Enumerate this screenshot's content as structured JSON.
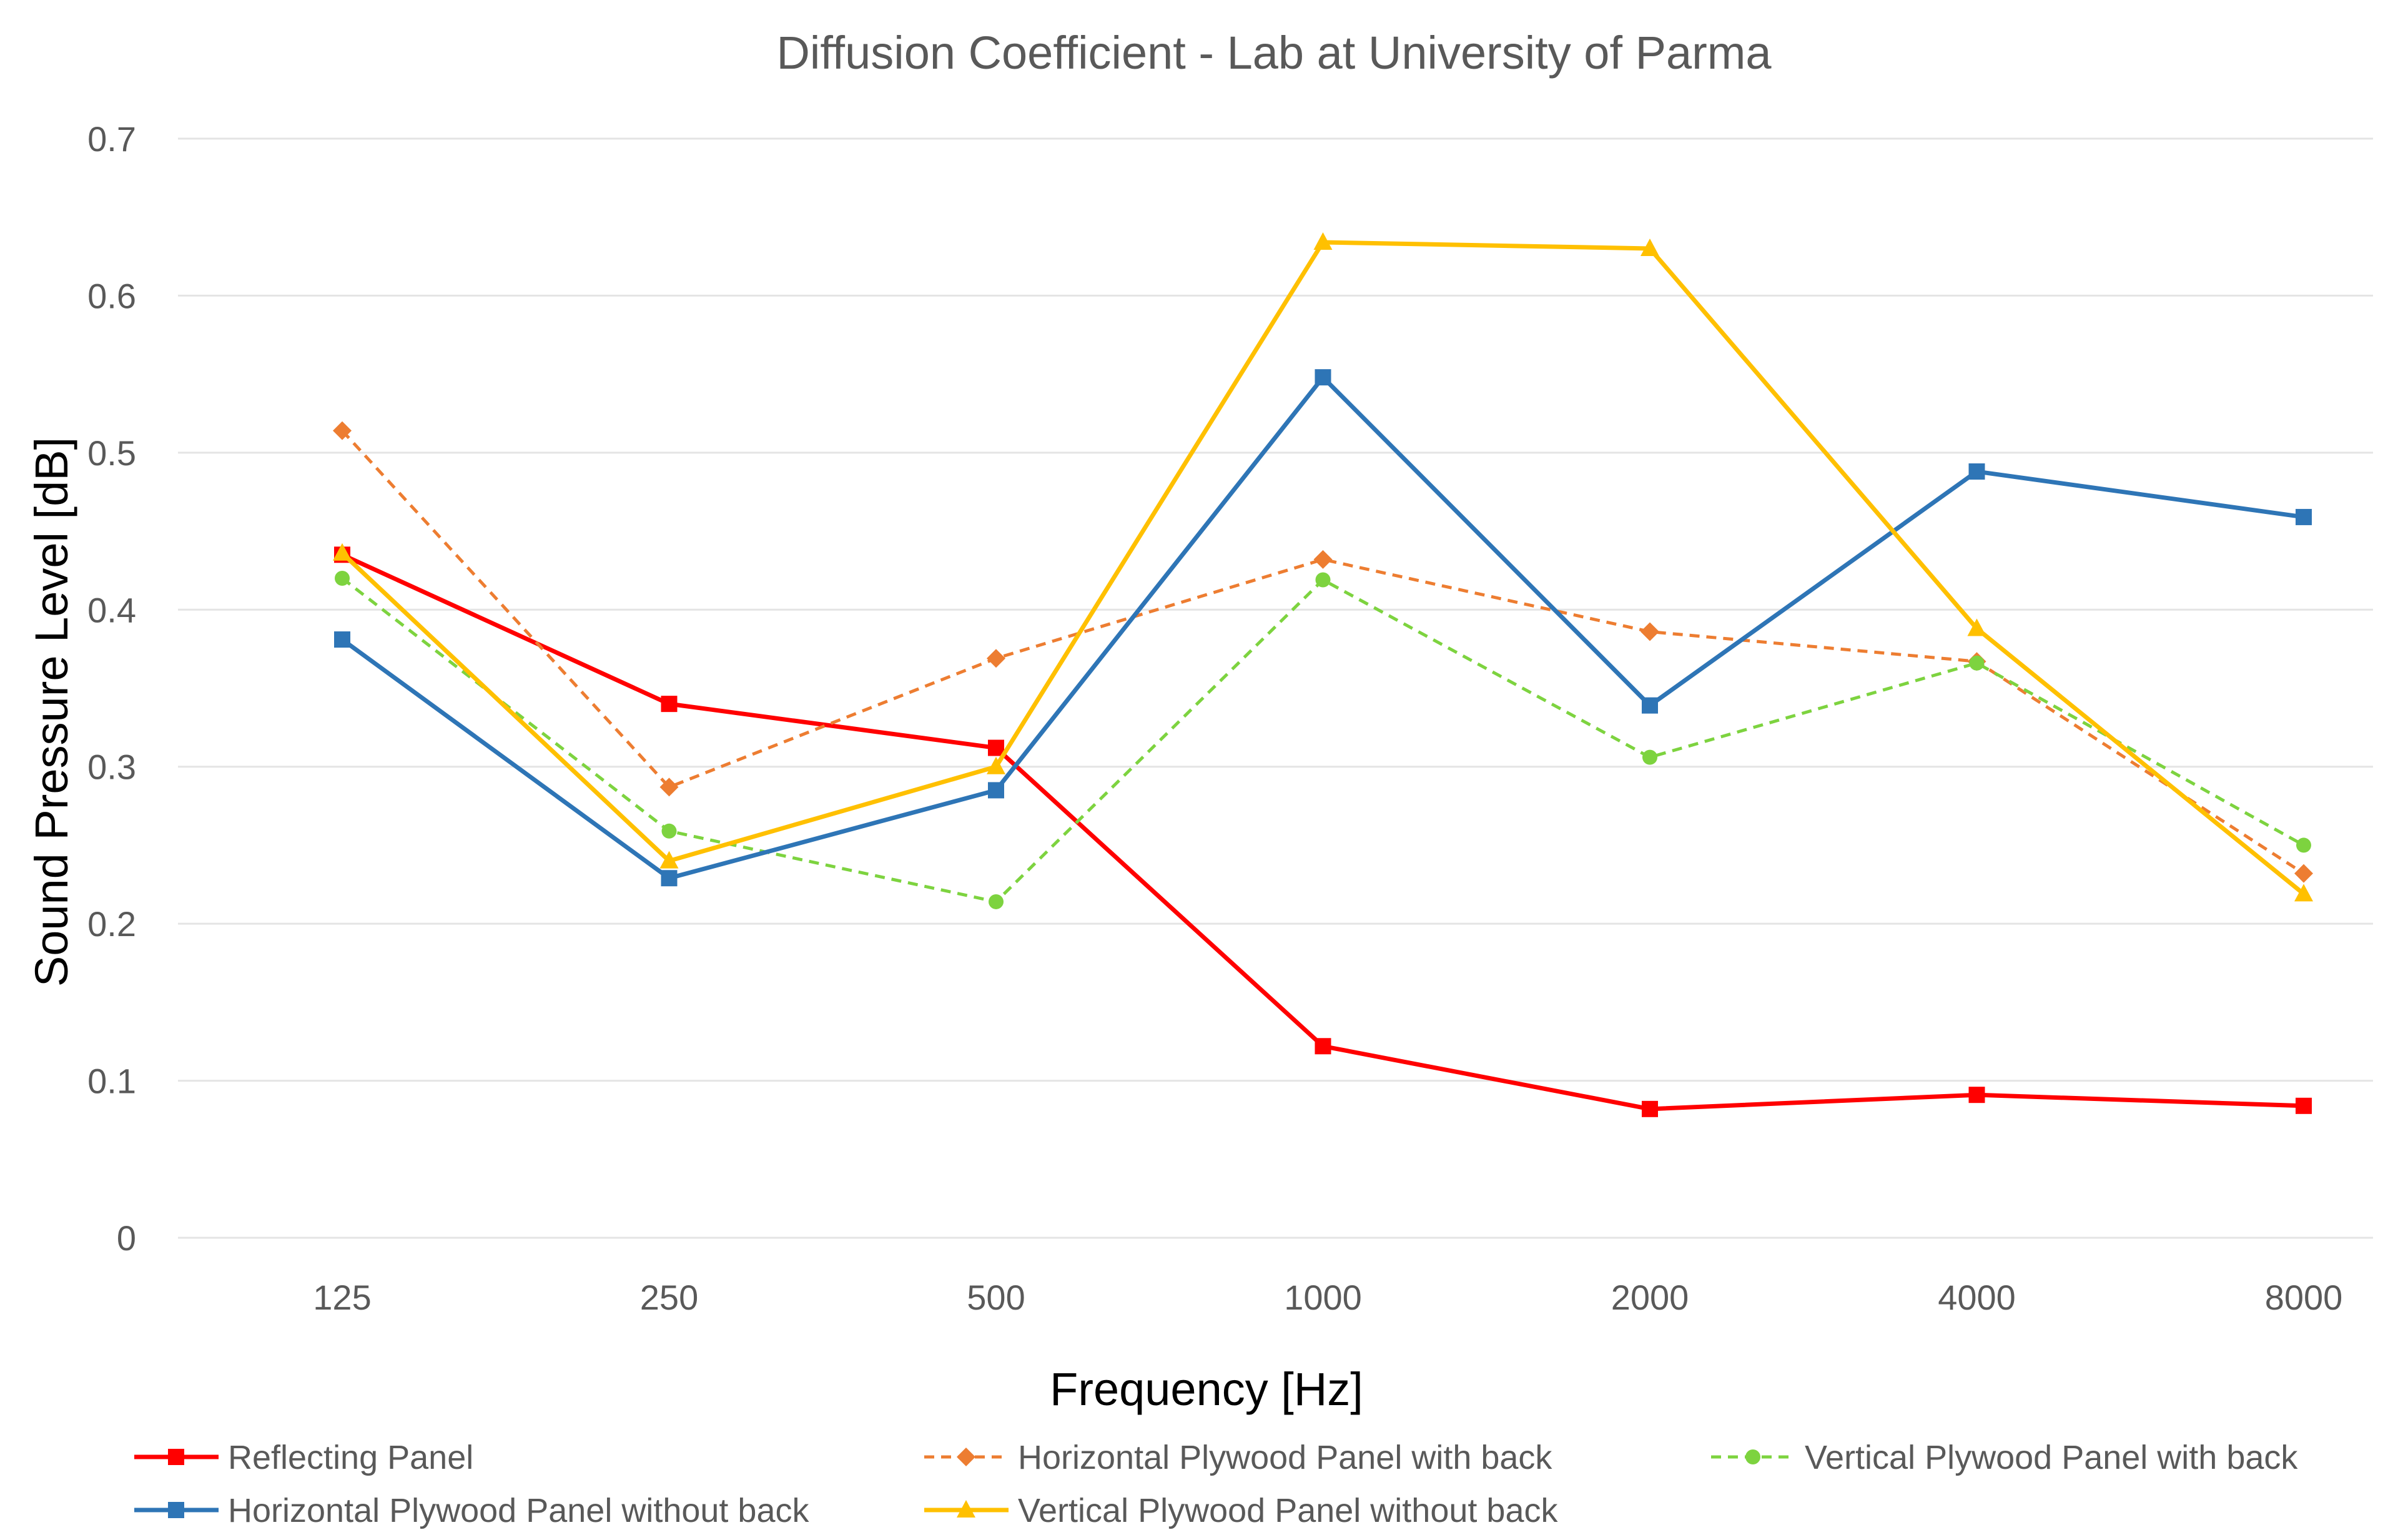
{
  "chart_data": {
    "type": "line",
    "title": "Diffusion Coefficient - Lab at University of Parma",
    "xlabel": "Frequency [Hz]",
    "ylabel": "Sound Pressure Level [dB]",
    "categories": [
      "125",
      "250",
      "500",
      "1000",
      "2000",
      "4000",
      "8000"
    ],
    "ylim": [
      0,
      0.7
    ],
    "yticks": [
      "0",
      "0.1",
      "0.2",
      "0.3",
      "0.4",
      "0.5",
      "0.6",
      "0.7"
    ],
    "grid": true,
    "legend_position": "bottom",
    "series": [
      {
        "name": "Reflecting Panel",
        "color": "#ff0000",
        "dashed": false,
        "marker": "square",
        "values": [
          0.435,
          0.34,
          0.312,
          0.122,
          0.082,
          0.091,
          0.084
        ]
      },
      {
        "name": "Horizontal Plywood Panel with back",
        "color": "#ed7d31",
        "dashed": true,
        "marker": "diamond",
        "values": [
          0.514,
          0.287,
          0.369,
          0.432,
          0.386,
          0.367,
          0.232
        ]
      },
      {
        "name": "Vertical Plywood Panel with back",
        "color": "#7dd33f",
        "dashed": true,
        "marker": "circle",
        "values": [
          0.42,
          0.259,
          0.214,
          0.419,
          0.306,
          0.366,
          0.25
        ]
      },
      {
        "name": "Horizontal Plywood Panel without back",
        "color": "#2e75b6",
        "dashed": false,
        "marker": "square",
        "values": [
          0.381,
          0.229,
          0.285,
          0.548,
          0.339,
          0.488,
          0.459
        ]
      },
      {
        "name": "Vertical Plywood Panel without back",
        "color": "#ffc000",
        "dashed": false,
        "marker": "triangle",
        "values": [
          0.436,
          0.24,
          0.3,
          0.634,
          0.63,
          0.388,
          0.219
        ]
      }
    ]
  }
}
